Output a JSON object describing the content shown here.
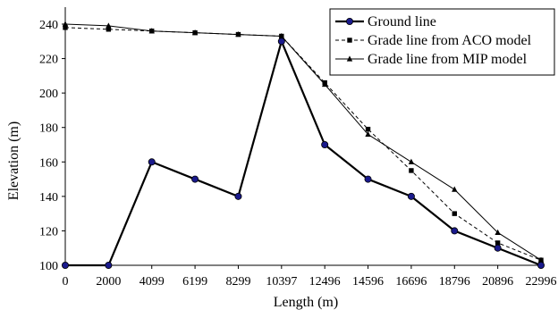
{
  "chart_data": {
    "type": "line",
    "title": "",
    "xlabel": "Length (m)",
    "ylabel": "Elevation (m)",
    "categories": [
      "0",
      "2000",
      "4099",
      "6199",
      "8299",
      "10397",
      "12496",
      "14596",
      "16696",
      "18796",
      "20896",
      "22996"
    ],
    "ylim": [
      100,
      240
    ],
    "yticks": [
      100,
      120,
      140,
      160,
      180,
      200,
      220,
      240
    ],
    "grid": false,
    "legend_position": "top-right",
    "series": [
      {
        "name": "Ground line",
        "style": "thick solid line, filled circle markers",
        "color": "#000080",
        "values": [
          100,
          100,
          160,
          150,
          140,
          230,
          170,
          150,
          140,
          120,
          110,
          100
        ]
      },
      {
        "name": "Grade line from ACO model",
        "style": "dashed line, square markers",
        "color": "#000000",
        "values": [
          238,
          237,
          236,
          235,
          234,
          233,
          206,
          179,
          155,
          130,
          113,
          103
        ]
      },
      {
        "name": "Grade line from MIP model",
        "style": "thin solid line, triangle markers",
        "color": "#000000",
        "values": [
          240,
          239,
          236,
          235,
          234,
          233,
          205,
          176,
          160,
          144,
          119,
          103
        ]
      }
    ]
  }
}
